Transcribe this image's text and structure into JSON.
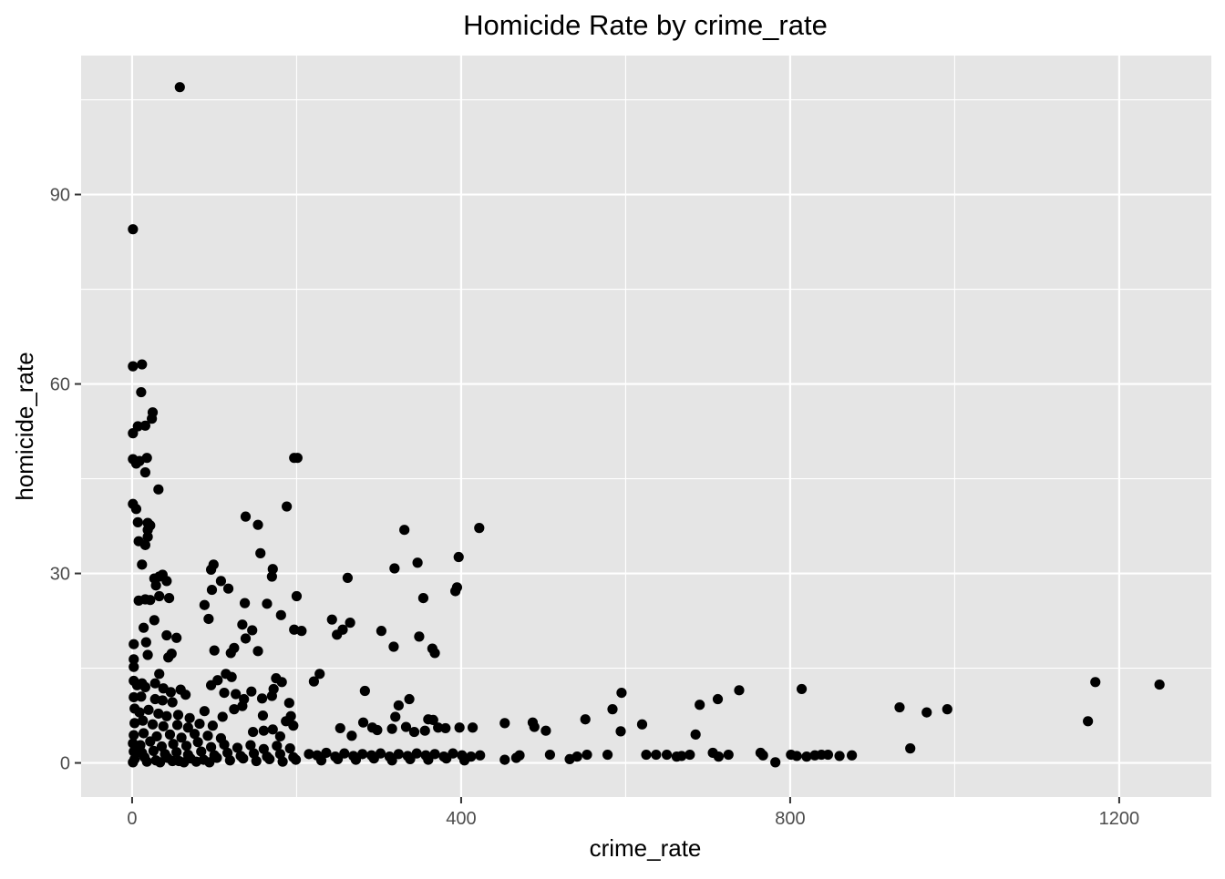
{
  "chart_data": {
    "type": "scatter",
    "title": "Homicide Rate by crime_rate",
    "xlabel": "crime_rate",
    "ylabel": "homicide_rate",
    "xlim": [
      -62,
      1312
    ],
    "ylim": [
      -5.4,
      112
    ],
    "x_ticks": [
      0,
      400,
      800,
      1200
    ],
    "x_tick_labels": [
      "0",
      "400",
      "800",
      "1200"
    ],
    "y_ticks": [
      0,
      30,
      60,
      90
    ],
    "y_tick_labels": [
      "0",
      "30",
      "60",
      "90"
    ],
    "grid": true,
    "point_color": "#000000",
    "panel_color": "#e5e5e5",
    "grid_color": "#ffffff",
    "series": [
      {
        "name": "homicide_rate",
        "points": [
          [
            58,
            107
          ],
          [
            1,
            84.5
          ],
          [
            1,
            62.8
          ],
          [
            12,
            63.1
          ],
          [
            11,
            58.7
          ],
          [
            1,
            52.2
          ],
          [
            7,
            53.3
          ],
          [
            16,
            53.4
          ],
          [
            24,
            54.5
          ],
          [
            25,
            55.5
          ],
          [
            1,
            48.1
          ],
          [
            5,
            47.4
          ],
          [
            9,
            47.8
          ],
          [
            18,
            48.3
          ],
          [
            16,
            46.0
          ],
          [
            32,
            43.3
          ],
          [
            1,
            41.0
          ],
          [
            5,
            40.2
          ],
          [
            7,
            38.1
          ],
          [
            19,
            38.0
          ],
          [
            19,
            36.9
          ],
          [
            22,
            37.6
          ],
          [
            8,
            35.1
          ],
          [
            16,
            34.5
          ],
          [
            19,
            35.8
          ],
          [
            12,
            31.4
          ],
          [
            27,
            29.2
          ],
          [
            33,
            29.5
          ],
          [
            37,
            29.8
          ],
          [
            29,
            28.1
          ],
          [
            42,
            28.8
          ],
          [
            8,
            25.7
          ],
          [
            16,
            25.9
          ],
          [
            22,
            25.8
          ],
          [
            33,
            26.4
          ],
          [
            45,
            26.1
          ],
          [
            14,
            21.4
          ],
          [
            27,
            22.6
          ],
          [
            42,
            20.2
          ],
          [
            54,
            19.8
          ],
          [
            2,
            18.8
          ],
          [
            17,
            19.1
          ],
          [
            2,
            16.4
          ],
          [
            2,
            15.2
          ],
          [
            19,
            17.1
          ],
          [
            44,
            16.7
          ],
          [
            48,
            17.3
          ],
          [
            33,
            14.1
          ],
          [
            2,
            13.0
          ],
          [
            6,
            12.3
          ],
          [
            12,
            12.6
          ],
          [
            16,
            12.0
          ],
          [
            28,
            12.6
          ],
          [
            38,
            11.8
          ],
          [
            47,
            11.2
          ],
          [
            59,
            11.6
          ],
          [
            2,
            10.4
          ],
          [
            11,
            10.5
          ],
          [
            28,
            10.1
          ],
          [
            37,
            9.9
          ],
          [
            49,
            9.6
          ],
          [
            65,
            10.8
          ],
          [
            3,
            8.6
          ],
          [
            9,
            8.0
          ],
          [
            20,
            8.4
          ],
          [
            32,
            7.8
          ],
          [
            42,
            7.4
          ],
          [
            56,
            7.6
          ],
          [
            70,
            7.1
          ],
          [
            88,
            8.2
          ],
          [
            3,
            6.3
          ],
          [
            13,
            6.7
          ],
          [
            25,
            6.1
          ],
          [
            38,
            5.8
          ],
          [
            55,
            6.0
          ],
          [
            68,
            5.6
          ],
          [
            82,
            6.2
          ],
          [
            98,
            5.9
          ],
          [
            2,
            4.4
          ],
          [
            14,
            4.7
          ],
          [
            30,
            4.2
          ],
          [
            46,
            4.5
          ],
          [
            60,
            4.0
          ],
          [
            76,
            4.6
          ],
          [
            92,
            4.3
          ],
          [
            108,
            3.9
          ],
          [
            1,
            3.1
          ],
          [
            10,
            2.8
          ],
          [
            22,
            3.4
          ],
          [
            36,
            2.6
          ],
          [
            50,
            3.0
          ],
          [
            66,
            2.7
          ],
          [
            80,
            3.3
          ],
          [
            96,
            2.5
          ],
          [
            112,
            2.9
          ],
          [
            128,
            2.4
          ],
          [
            144,
            2.8
          ],
          [
            160,
            2.2
          ],
          [
            176,
            2.7
          ],
          [
            192,
            2.3
          ],
          [
            2,
            1.8
          ],
          [
            12,
            1.6
          ],
          [
            26,
            1.9
          ],
          [
            40,
            1.4
          ],
          [
            54,
            1.7
          ],
          [
            68,
            1.3
          ],
          [
            84,
            1.8
          ],
          [
            100,
            1.2
          ],
          [
            116,
            1.6
          ],
          [
            132,
            1.1
          ],
          [
            148,
            1.5
          ],
          [
            164,
            1.0
          ],
          [
            180,
            1.4
          ],
          [
            196,
            0.9
          ],
          [
            3,
            0.6
          ],
          [
            15,
            0.9
          ],
          [
            29,
            0.4
          ],
          [
            43,
            0.8
          ],
          [
            57,
            0.3
          ],
          [
            71,
            0.7
          ],
          [
            87,
            0.5
          ],
          [
            103,
            0.8
          ],
          [
            119,
            0.4
          ],
          [
            135,
            0.7
          ],
          [
            151,
            0.3
          ],
          [
            167,
            0.6
          ],
          [
            183,
            0.2
          ],
          [
            199,
            0.5
          ],
          [
            1,
            0.1
          ],
          [
            18,
            0.2
          ],
          [
            34,
            0.1
          ],
          [
            49,
            0.3
          ],
          [
            63,
            0.1
          ],
          [
            78,
            0.2
          ],
          [
            94,
            0.1
          ],
          [
            96,
            30.6
          ],
          [
            99,
            31.4
          ],
          [
            108,
            28.8
          ],
          [
            97,
            27.4
          ],
          [
            117,
            27.6
          ],
          [
            138,
            39.0
          ],
          [
            153,
            37.7
          ],
          [
            156,
            33.2
          ],
          [
            170,
            29.5
          ],
          [
            171,
            30.7
          ],
          [
            164,
            25.2
          ],
          [
            137,
            25.3
          ],
          [
            134,
            21.9
          ],
          [
            146,
            21.0
          ],
          [
            138,
            19.7
          ],
          [
            153,
            17.7
          ],
          [
            181,
            23.4
          ],
          [
            188,
            40.6
          ],
          [
            197,
            48.3
          ],
          [
            201,
            48.3
          ],
          [
            200,
            26.4
          ],
          [
            197,
            21.1
          ],
          [
            206,
            20.9
          ],
          [
            88,
            25.0
          ],
          [
            93,
            22.8
          ],
          [
            124,
            18.2
          ],
          [
            120,
            17.4
          ],
          [
            100,
            17.8
          ],
          [
            114,
            14.1
          ],
          [
            121,
            13.6
          ],
          [
            96,
            12.3
          ],
          [
            104,
            13.1
          ],
          [
            112,
            11.1
          ],
          [
            126,
            10.9
          ],
          [
            136,
            10.1
          ],
          [
            145,
            11.3
          ],
          [
            158,
            10.2
          ],
          [
            172,
            11.7
          ],
          [
            175,
            13.4
          ],
          [
            182,
            12.8
          ],
          [
            170,
            10.6
          ],
          [
            191,
            9.5
          ],
          [
            193,
            7.4
          ],
          [
            124,
            8.5
          ],
          [
            134,
            9.0
          ],
          [
            110,
            7.3
          ],
          [
            159,
            7.5
          ],
          [
            160,
            5.1
          ],
          [
            147,
            4.9
          ],
          [
            171,
            5.3
          ],
          [
            187,
            6.6
          ],
          [
            196,
            5.9
          ],
          [
            180,
            4.2
          ],
          [
            221,
            12.9
          ],
          [
            228,
            14.1
          ],
          [
            243,
            22.7
          ],
          [
            249,
            20.3
          ],
          [
            256,
            21.1
          ],
          [
            262,
            29.3
          ],
          [
            265,
            22.2
          ],
          [
            253,
            5.5
          ],
          [
            267,
            4.3
          ],
          [
            281,
            6.4
          ],
          [
            283,
            11.4
          ],
          [
            292,
            5.6
          ],
          [
            298,
            5.2
          ],
          [
            303,
            20.9
          ],
          [
            318,
            18.4
          ],
          [
            319,
            30.8
          ],
          [
            331,
            36.9
          ],
          [
            347,
            31.7
          ],
          [
            354,
            26.1
          ],
          [
            349,
            20.0
          ],
          [
            365,
            18.1
          ],
          [
            368,
            17.4
          ],
          [
            337,
            10.1
          ],
          [
            324,
            9.1
          ],
          [
            320,
            7.3
          ],
          [
            316,
            5.4
          ],
          [
            333,
            5.7
          ],
          [
            343,
            4.9
          ],
          [
            356,
            5.1
          ],
          [
            360,
            6.9
          ],
          [
            366,
            6.8
          ],
          [
            372,
            5.6
          ],
          [
            381,
            5.5
          ],
          [
            393,
            27.2
          ],
          [
            395,
            27.8
          ],
          [
            397,
            32.6
          ],
          [
            422,
            37.2
          ],
          [
            398,
            5.6
          ],
          [
            414,
            5.6
          ],
          [
            215,
            1.4
          ],
          [
            225,
            1.2
          ],
          [
            236,
            1.6
          ],
          [
            247,
            1.0
          ],
          [
            258,
            1.5
          ],
          [
            269,
            1.1
          ],
          [
            280,
            1.4
          ],
          [
            291,
            1.2
          ],
          [
            302,
            1.5
          ],
          [
            313,
            1.0
          ],
          [
            324,
            1.4
          ],
          [
            335,
            1.1
          ],
          [
            346,
            1.5
          ],
          [
            357,
            1.2
          ],
          [
            368,
            1.4
          ],
          [
            379,
            1.0
          ],
          [
            390,
            1.5
          ],
          [
            401,
            1.2
          ],
          [
            412,
            1.0
          ],
          [
            423,
            1.2
          ],
          [
            230,
            0.4
          ],
          [
            250,
            0.6
          ],
          [
            272,
            0.5
          ],
          [
            294,
            0.7
          ],
          [
            316,
            0.4
          ],
          [
            338,
            0.6
          ],
          [
            360,
            0.5
          ],
          [
            382,
            0.7
          ],
          [
            404,
            0.4
          ],
          [
            453,
            6.3
          ],
          [
            487,
            6.4
          ],
          [
            489,
            5.7
          ],
          [
            503,
            5.1
          ],
          [
            453,
            0.5
          ],
          [
            467,
            0.8
          ],
          [
            471,
            1.2
          ],
          [
            508,
            1.3
          ],
          [
            532,
            0.6
          ],
          [
            541,
            1.0
          ],
          [
            551,
            6.9
          ],
          [
            553,
            1.3
          ],
          [
            578,
            1.3
          ],
          [
            584,
            8.5
          ],
          [
            595,
            11.1
          ],
          [
            594,
            5.0
          ],
          [
            620,
            6.1
          ],
          [
            625,
            1.3
          ],
          [
            637,
            1.3
          ],
          [
            650,
            1.3
          ],
          [
            662,
            1.0
          ],
          [
            668,
            1.1
          ],
          [
            678,
            1.3
          ],
          [
            685,
            4.5
          ],
          [
            690,
            9.2
          ],
          [
            706,
            1.6
          ],
          [
            712,
            10.1
          ],
          [
            713,
            1.0
          ],
          [
            725,
            1.3
          ],
          [
            738,
            11.5
          ],
          [
            764,
            1.6
          ],
          [
            767,
            1.2
          ],
          [
            782,
            0.1
          ],
          [
            801,
            1.3
          ],
          [
            808,
            1.1
          ],
          [
            814,
            11.7
          ],
          [
            820,
            1.0
          ],
          [
            830,
            1.2
          ],
          [
            838,
            1.3
          ],
          [
            846,
            1.3
          ],
          [
            860,
            1.1
          ],
          [
            875,
            1.2
          ],
          [
            933,
            8.8
          ],
          [
            946,
            2.3
          ],
          [
            966,
            8.0
          ],
          [
            991,
            8.5
          ],
          [
            1162,
            6.6
          ],
          [
            1171,
            12.8
          ],
          [
            1249,
            12.4
          ]
        ]
      }
    ]
  }
}
